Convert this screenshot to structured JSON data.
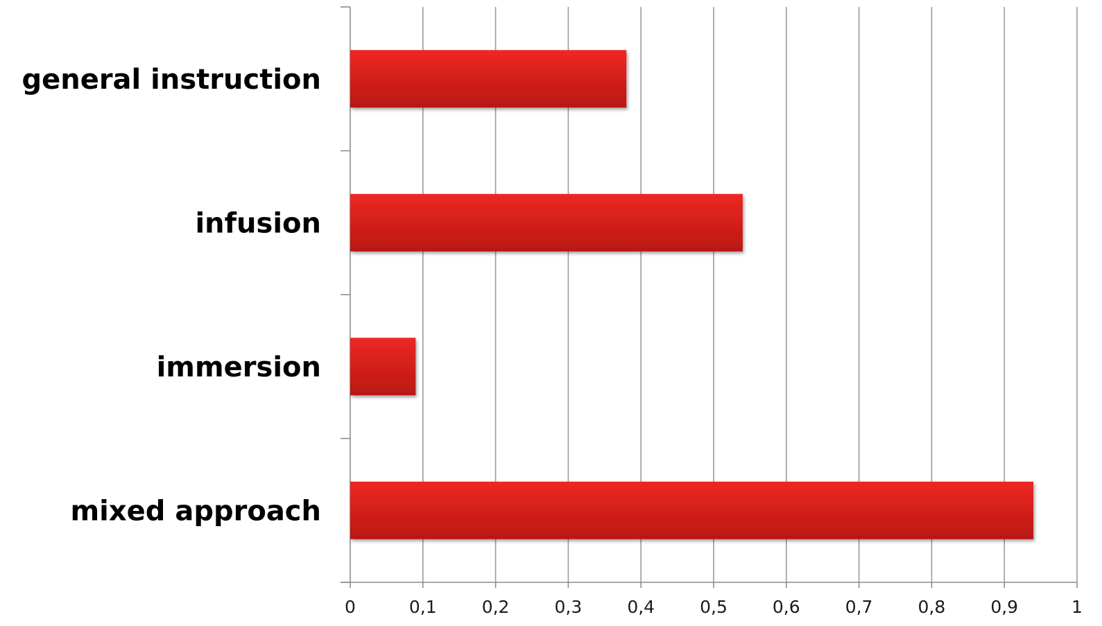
{
  "chart_data": {
    "type": "bar",
    "orientation": "horizontal",
    "categories": [
      "general instruction",
      "infusion",
      "immersion",
      "mixed approach"
    ],
    "values": [
      0.38,
      0.54,
      0.09,
      0.94
    ],
    "title": "",
    "xlabel": "",
    "ylabel": "",
    "xlim": [
      0,
      1
    ],
    "xticks": [
      0,
      0.1,
      0.2,
      0.3,
      0.4,
      0.5,
      0.6,
      0.7,
      0.8,
      0.9,
      1
    ],
    "xtick_labels": [
      "0",
      "0,1",
      "0,2",
      "0,3",
      "0,4",
      "0,5",
      "0,6",
      "0,7",
      "0,8",
      "0,9",
      "1"
    ],
    "grid": "vertical",
    "legend": "none",
    "colors": {
      "bar_top": "#ee2722",
      "bar_bottom": "#b81812",
      "grid": "#9b9b9b",
      "axis": "#8c8c8c"
    }
  }
}
